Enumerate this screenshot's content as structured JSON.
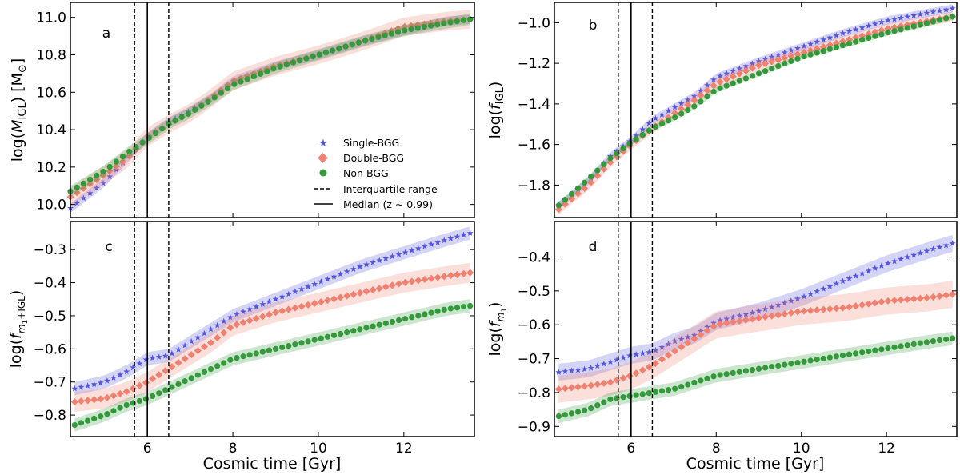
{
  "figure": {
    "xlabel": "Cosmic time [Gyr]",
    "colors": {
      "single": "#5555e0",
      "double": "#f08070",
      "non": "#33993a"
    },
    "legend": {
      "single": "Single-BGG",
      "double": "Double-BGG",
      "non": "Non-BGG",
      "iqr": "Interquartile range",
      "median": "Median (z ∼ 0.99)"
    }
  },
  "chart_data": [
    {
      "type": "scatter",
      "panel": "a",
      "ylabel": "log(M_IGL) [M⊙]",
      "xlim": [
        4.2,
        13.65
      ],
      "ylim": [
        9.93,
        11.08
      ],
      "xticks": [
        6,
        8,
        10,
        12
      ],
      "yticks": [
        10.0,
        10.2,
        10.4,
        10.6,
        10.8,
        11.0
      ],
      "ytick_labels": [
        "10.0",
        "10.2",
        "10.4",
        "10.6",
        "10.8",
        "11.0"
      ],
      "vlines": {
        "median": 6.0,
        "iqr": [
          5.7,
          6.5
        ]
      },
      "legend_position": "center-right",
      "series": [
        {
          "name": "Single-BGG",
          "key": "single",
          "marker": "star",
          "x": [
            4.2,
            5.0,
            5.5,
            6.0,
            6.5,
            7.0,
            7.5,
            8.0,
            9.0,
            10.0,
            11.0,
            12.0,
            13.0,
            13.55
          ],
          "y": [
            9.98,
            10.12,
            10.24,
            10.36,
            10.44,
            10.5,
            10.57,
            10.66,
            10.74,
            10.8,
            10.87,
            10.93,
            10.98,
            10.99
          ],
          "band": 0.025
        },
        {
          "name": "Double-BGG",
          "key": "double",
          "marker": "diamond",
          "x": [
            4.2,
            5.0,
            5.5,
            6.0,
            6.5,
            7.0,
            7.5,
            8.0,
            9.0,
            10.0,
            11.0,
            12.0,
            13.0,
            13.55
          ],
          "y": [
            10.04,
            10.16,
            10.24,
            10.36,
            10.43,
            10.49,
            10.57,
            10.66,
            10.74,
            10.8,
            10.87,
            10.95,
            10.98,
            10.99
          ],
          "band": 0.05
        },
        {
          "name": "Non-BGG",
          "key": "non",
          "marker": "circle",
          "x": [
            4.2,
            5.0,
            5.5,
            6.0,
            6.5,
            7.0,
            7.5,
            8.0,
            9.0,
            10.0,
            11.0,
            12.0,
            13.0,
            13.55
          ],
          "y": [
            10.07,
            10.18,
            10.27,
            10.35,
            10.43,
            10.49,
            10.56,
            10.64,
            10.73,
            10.8,
            10.87,
            10.93,
            10.97,
            10.99
          ],
          "band": 0.03
        }
      ]
    },
    {
      "type": "scatter",
      "panel": "b",
      "ylabel": "log(f_IGL)",
      "xlim": [
        4.2,
        13.65
      ],
      "ylim": [
        -1.96,
        -0.9
      ],
      "xticks": [
        6,
        8,
        10,
        12
      ],
      "yticks": [
        -1.8,
        -1.6,
        -1.4,
        -1.2,
        -1.0
      ],
      "ytick_labels": [
        "−1.8",
        "−1.6",
        "−1.4",
        "−1.2",
        "−1.0"
      ],
      "vlines": {
        "median": 6.0,
        "iqr": [
          5.7,
          6.5
        ]
      },
      "series": [
        {
          "name": "Single-BGG",
          "key": "single",
          "marker": "star",
          "x": [
            4.3,
            5.0,
            5.5,
            6.0,
            6.5,
            7.0,
            7.5,
            8.0,
            9.0,
            10.0,
            11.0,
            12.0,
            13.0,
            13.55
          ],
          "y": [
            -1.9,
            -1.78,
            -1.66,
            -1.58,
            -1.48,
            -1.42,
            -1.36,
            -1.27,
            -1.19,
            -1.12,
            -1.05,
            -0.99,
            -0.95,
            -0.93
          ],
          "band": 0.02
        },
        {
          "name": "Double-BGG",
          "key": "double",
          "marker": "diamond",
          "x": [
            4.3,
            5.0,
            5.5,
            6.0,
            6.5,
            7.0,
            7.5,
            8.0,
            9.0,
            10.0,
            11.0,
            12.0,
            13.0,
            13.55
          ],
          "y": [
            -1.92,
            -1.8,
            -1.69,
            -1.6,
            -1.52,
            -1.45,
            -1.38,
            -1.3,
            -1.21,
            -1.15,
            -1.09,
            -1.03,
            -0.99,
            -0.97
          ],
          "band": 0.025
        },
        {
          "name": "Non-BGG",
          "key": "non",
          "marker": "circle",
          "x": [
            4.3,
            5.0,
            5.5,
            6.0,
            6.5,
            7.0,
            7.5,
            8.0,
            9.0,
            10.0,
            11.0,
            12.0,
            13.0,
            13.55
          ],
          "y": [
            -1.9,
            -1.77,
            -1.67,
            -1.59,
            -1.52,
            -1.47,
            -1.41,
            -1.33,
            -1.25,
            -1.17,
            -1.11,
            -1.05,
            -1.0,
            -0.97
          ],
          "band": 0.015
        }
      ]
    },
    {
      "type": "scatter",
      "panel": "c",
      "ylabel": "log(f_m1+IGL)",
      "xlim": [
        4.2,
        13.65
      ],
      "ylim": [
        -0.865,
        -0.215
      ],
      "xticks": [
        6,
        8,
        10,
        12
      ],
      "xtick_labels": [
        "6",
        "8",
        "10",
        "12"
      ],
      "yticks": [
        -0.8,
        -0.7,
        -0.6,
        -0.5,
        -0.4,
        -0.3
      ],
      "ytick_labels": [
        "−0.8",
        "−0.7",
        "−0.6",
        "−0.5",
        "−0.4",
        "−0.3"
      ],
      "vlines": {
        "median": 6.0,
        "iqr": [
          5.7,
          6.5
        ]
      },
      "series": [
        {
          "name": "Single-BGG",
          "key": "single",
          "marker": "star",
          "x": [
            4.3,
            5.0,
            5.5,
            6.0,
            6.5,
            7.0,
            7.5,
            8.0,
            9.0,
            10.0,
            11.0,
            12.0,
            13.0,
            13.55
          ],
          "y": [
            -0.72,
            -0.7,
            -0.67,
            -0.63,
            -0.62,
            -0.58,
            -0.54,
            -0.5,
            -0.45,
            -0.4,
            -0.35,
            -0.31,
            -0.27,
            -0.25
          ],
          "band": 0.02
        },
        {
          "name": "Double-BGG",
          "key": "double",
          "marker": "diamond",
          "x": [
            4.3,
            5.0,
            5.5,
            6.0,
            6.5,
            7.0,
            7.5,
            8.0,
            9.0,
            10.0,
            11.0,
            12.0,
            13.0,
            13.55
          ],
          "y": [
            -0.76,
            -0.75,
            -0.73,
            -0.7,
            -0.66,
            -0.62,
            -0.58,
            -0.53,
            -0.49,
            -0.46,
            -0.43,
            -0.4,
            -0.38,
            -0.37
          ],
          "band": 0.03
        },
        {
          "name": "Non-BGG",
          "key": "non",
          "marker": "circle",
          "x": [
            4.3,
            5.0,
            5.5,
            6.0,
            6.5,
            7.0,
            7.5,
            8.0,
            9.0,
            10.0,
            11.0,
            12.0,
            13.0,
            13.55
          ],
          "y": [
            -0.83,
            -0.8,
            -0.77,
            -0.75,
            -0.72,
            -0.69,
            -0.66,
            -0.63,
            -0.6,
            -0.57,
            -0.54,
            -0.51,
            -0.48,
            -0.47
          ],
          "band": 0.02
        }
      ]
    },
    {
      "type": "scatter",
      "panel": "d",
      "ylabel": "log(f_m1)",
      "xlim": [
        4.2,
        13.65
      ],
      "ylim": [
        -0.93,
        -0.295
      ],
      "xticks": [
        6,
        8,
        10,
        12
      ],
      "xtick_labels": [
        "6",
        "8",
        "10",
        "12"
      ],
      "yticks": [
        -0.9,
        -0.8,
        -0.7,
        -0.6,
        -0.5,
        -0.4
      ],
      "ytick_labels": [
        "−0.9",
        "−0.8",
        "−0.7",
        "−0.6",
        "−0.5",
        "−0.4"
      ],
      "vlines": {
        "median": 6.0,
        "iqr": [
          5.7,
          6.5
        ]
      },
      "series": [
        {
          "name": "Single-BGG",
          "key": "single",
          "marker": "star",
          "x": [
            4.3,
            5.0,
            5.5,
            6.0,
            6.5,
            7.0,
            7.5,
            8.0,
            9.0,
            10.0,
            11.0,
            12.0,
            13.0,
            13.55
          ],
          "y": [
            -0.74,
            -0.73,
            -0.71,
            -0.69,
            -0.68,
            -0.65,
            -0.63,
            -0.59,
            -0.56,
            -0.52,
            -0.47,
            -0.42,
            -0.38,
            -0.36
          ],
          "band": 0.025
        },
        {
          "name": "Double-BGG",
          "key": "double",
          "marker": "diamond",
          "x": [
            4.3,
            5.0,
            5.5,
            6.0,
            6.5,
            7.0,
            7.5,
            8.0,
            9.0,
            10.0,
            11.0,
            12.0,
            13.0,
            13.55
          ],
          "y": [
            -0.79,
            -0.78,
            -0.77,
            -0.75,
            -0.72,
            -0.68,
            -0.64,
            -0.6,
            -0.58,
            -0.56,
            -0.55,
            -0.53,
            -0.52,
            -0.51
          ],
          "band": 0.04
        },
        {
          "name": "Non-BGG",
          "key": "non",
          "marker": "circle",
          "x": [
            4.3,
            5.0,
            5.5,
            6.0,
            6.5,
            7.0,
            7.5,
            8.0,
            9.0,
            10.0,
            11.0,
            12.0,
            13.0,
            13.55
          ],
          "y": [
            -0.87,
            -0.85,
            -0.82,
            -0.81,
            -0.8,
            -0.79,
            -0.77,
            -0.75,
            -0.73,
            -0.71,
            -0.69,
            -0.67,
            -0.65,
            -0.64
          ],
          "band": 0.02
        }
      ]
    }
  ]
}
